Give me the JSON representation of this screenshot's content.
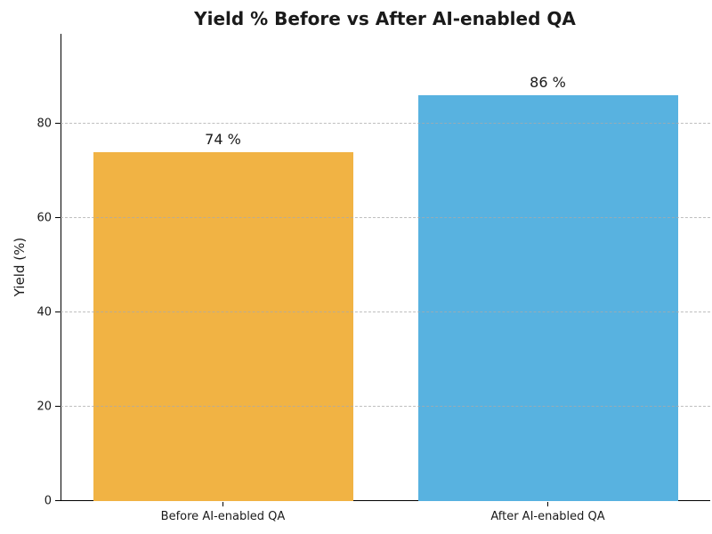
{
  "chart_data": {
    "type": "bar",
    "title": "Yield % Before vs After AI-enabled QA",
    "xlabel": "",
    "ylabel": "Yield (%)",
    "categories": [
      "Before AI-enabled QA",
      "After AI-enabled QA"
    ],
    "values": [
      74,
      86
    ],
    "value_labels": [
      "74 %",
      "86 %"
    ],
    "bar_colors": [
      "#F1B344",
      "#58B2E0"
    ],
    "yticks": [
      0,
      20,
      40,
      60,
      80
    ],
    "ylim": [
      0,
      99
    ],
    "bar_width_fraction": 0.8,
    "grid": "horizontal-dashed",
    "grid_color": "#aaaaaa",
    "legend": "none",
    "background_color": "#ffffff",
    "title_color": "#1a1a1a",
    "text_color": "#1a1a1a"
  }
}
